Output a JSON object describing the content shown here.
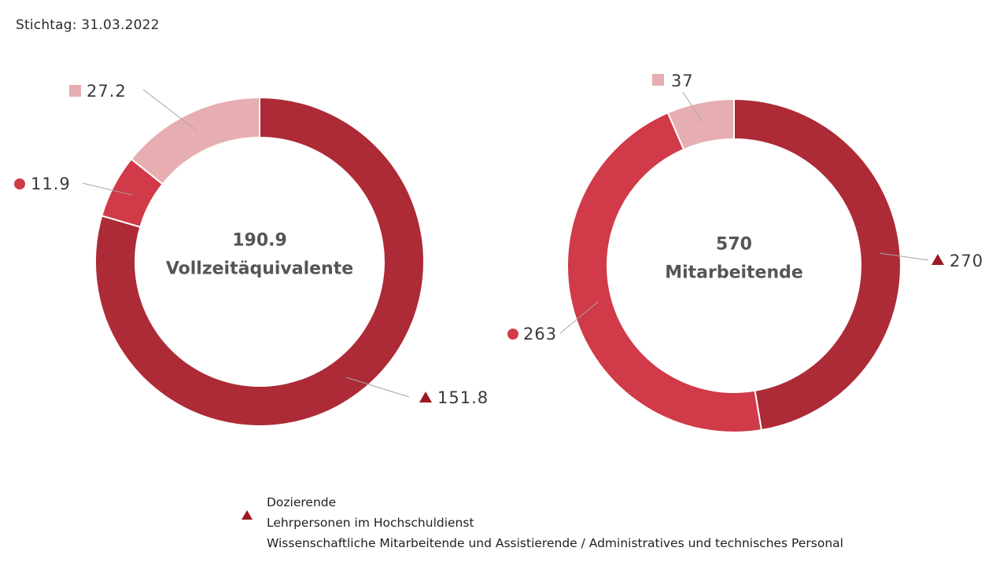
{
  "header": {
    "stichtag": "Stichtag: 31.03.2022"
  },
  "colors": {
    "dozierende": "#ad2a37",
    "lehrpersonen": "#d13a48",
    "wissenschaftliche": "#e6aeb1",
    "triangle_marker": "#9b1b24",
    "center_text": "#555555",
    "label_text": "#3a3a3a",
    "leader_line": "#a6a6a6"
  },
  "legend": {
    "items": [
      {
        "label": "Dozierende",
        "marker": "triangle",
        "color": "#9b1b24"
      },
      {
        "label": "Lehrpersonen im Hochschuldienst",
        "marker": "circle",
        "color": "#d13a48"
      },
      {
        "label": "Wissenschaftliche Mitarbeitende und Assistierende / Administratives und technisches Personal",
        "marker": "square",
        "color": "#e6aeb1"
      }
    ]
  },
  "chart_data": [
    {
      "type": "pie",
      "donut": true,
      "center_value": "190.9",
      "center_label": "Vollzeitäquivalente",
      "categories": [
        "Dozierende",
        "Lehrpersonen im Hochschuldienst",
        "Wissenschaftliche Mitarbeitende und Assistierende / Administratives und technisches Personal"
      ],
      "values": [
        151.8,
        11.9,
        27.2
      ],
      "labels": [
        "151.8",
        "11.9",
        "27.2"
      ]
    },
    {
      "type": "pie",
      "donut": true,
      "center_value": "570",
      "center_label": "Mitarbeitende",
      "categories": [
        "Dozierende",
        "Lehrpersonen im Hochschuldienst",
        "Wissenschaftliche Mitarbeitende und Assistierende / Administratives und technisches Personal"
      ],
      "values": [
        270,
        263,
        37
      ],
      "labels": [
        "270",
        "263",
        "37"
      ]
    }
  ]
}
